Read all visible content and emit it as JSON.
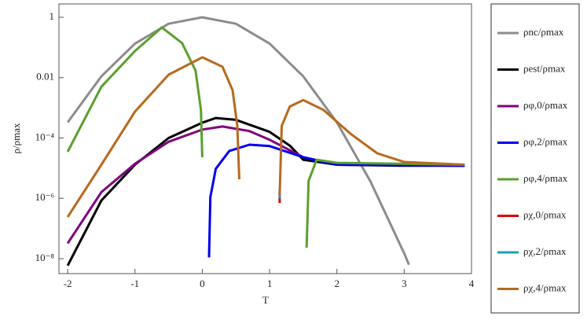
{
  "chart_data": {
    "type": "line",
    "x_label": "T",
    "y_label": "ρ/ρmax",
    "xlim": [
      -2.13,
      4.0
    ],
    "xticks": [
      -2,
      -1,
      0,
      1,
      2,
      3,
      4
    ],
    "ylim": [
      3.2e-09,
      2.77
    ],
    "log_y": true,
    "yticks": [
      {
        "value": 1e-08,
        "label": "10⁻⁸"
      },
      {
        "value": 1e-06,
        "label": "10⁻⁶"
      },
      {
        "value": 0.0001,
        "label": "10⁻⁴"
      },
      0.01,
      1
    ],
    "legend": "right",
    "series": [
      {
        "name": "ρnc/ρmax",
        "color": "#8c8c8c",
        "x": [
          -2,
          -1.5,
          -1,
          -0.5,
          0,
          0.5,
          1,
          1.5,
          2,
          2.5,
          3,
          3.07
        ],
        "values": [
          0.00033,
          0.011,
          0.135,
          0.61,
          1,
          0.61,
          0.135,
          0.011,
          0.00033,
          3.6e-06,
          1.5e-08,
          6.3e-09
        ]
      },
      {
        "name": "ρest/ρmax",
        "color": "#000000",
        "x": [
          -2,
          -1.5,
          -1,
          -0.5,
          0,
          0.2,
          0.5,
          1,
          1.3,
          1.5,
          2,
          3,
          3.9
        ],
        "values": [
          5.9e-09,
          8.5e-07,
          1.3e-05,
          0.0001,
          0.00032,
          0.00046,
          0.0004,
          0.00016,
          5.6e-05,
          1.9e-05,
          1.3e-05,
          1.2e-05,
          1.2e-05
        ]
      },
      {
        "name": "ρφ,0/ρmax",
        "color": "#800080",
        "x": [
          -2,
          -1.5,
          -1,
          -0.5,
          0,
          0.3,
          0.7,
          1,
          1.5,
          2,
          3.9
        ],
        "values": [
          3.2e-08,
          1.6e-06,
          1.4e-05,
          7.5e-05,
          0.00019,
          0.00024,
          0.00017,
          8.7e-05,
          2.3e-05,
          1.3e-05,
          1.2e-05
        ]
      },
      {
        "name": "ρφ,2/ρmax",
        "color": "#0000ee",
        "x": [
          0.1,
          0.12,
          0.2,
          0.4,
          0.7,
          1,
          1.5,
          2,
          3.9
        ],
        "values": [
          1.1e-08,
          1.1e-06,
          9.5e-06,
          3.7e-05,
          6e-05,
          5.4e-05,
          2.3e-05,
          1.3e-05,
          1.2e-05
        ]
      },
      {
        "name": "ρφ,4/ρmax",
        "color": "#5aa02c",
        "x": [
          -2,
          -1.5,
          -1,
          -0.6,
          -0.3,
          -0.1,
          -0.02,
          0,
          null,
          1.55,
          1.58,
          1.7,
          2,
          3.9
        ],
        "values": [
          3.5e-05,
          0.005,
          0.076,
          0.46,
          0.14,
          0.017,
          0.00085,
          2.3e-05,
          null,
          2.3e-08,
          3.8e-06,
          1.9e-05,
          1.5e-05,
          1.3e-05
        ]
      },
      {
        "name": "ρχ,0/ρmax",
        "color": "#e00000",
        "x": [
          1.15,
          1.15
        ],
        "values": [
          7e-07,
          1.5e-06
        ]
      },
      {
        "name": "ρχ,2/ρmax",
        "color": "#1aa0c0",
        "x": [
          1.15,
          1.15
        ],
        "values": [
          1e-06,
          2e-06
        ]
      },
      {
        "name": "ρχ,4/ρmax",
        "color": "#b8691e",
        "x": [
          -2,
          -1.5,
          -1,
          -0.5,
          0,
          0.3,
          0.45,
          0.52,
          0.55,
          null,
          1.15,
          1.18,
          1.3,
          1.5,
          1.8,
          2.2,
          2.6,
          3,
          3.9
        ],
        "values": [
          2.4e-07,
          1.3e-05,
          0.00075,
          0.0125,
          0.047,
          0.023,
          0.0038,
          0.00025,
          4.3e-06,
          null,
          1.3e-06,
          0.00025,
          0.0011,
          0.0018,
          0.00085,
          0.00014,
          3.1e-05,
          1.6e-05,
          1.3e-05
        ]
      }
    ]
  }
}
